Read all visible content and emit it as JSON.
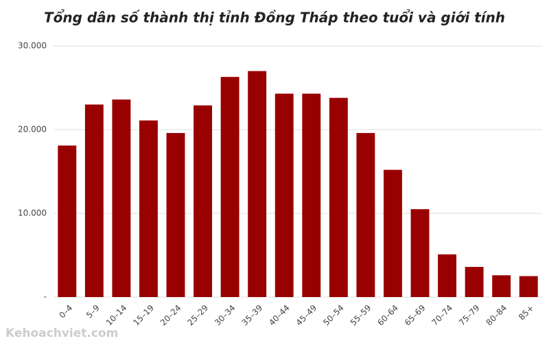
{
  "chart_data": {
    "type": "bar",
    "title": "Tổng dân số thành thị tỉnh Đồng Tháp theo tuổi và giới tính",
    "categories": [
      "0–4",
      "5–9",
      "10–14",
      "15–19",
      "20–24",
      "25–29",
      "30–34",
      "35–39",
      "40–44",
      "45–49",
      "50–54",
      "55–59",
      "60–64",
      "65–69",
      "70–74",
      "75–79",
      "80–84",
      "85+"
    ],
    "values": [
      18100,
      23000,
      23600,
      21100,
      19600,
      22900,
      26300,
      27000,
      24300,
      24300,
      23800,
      19600,
      15200,
      10500,
      5100,
      3600,
      2600,
      2500
    ],
    "color": "#990000",
    "ylim": [
      0,
      30000
    ],
    "yticks": [
      {
        "value": 0,
        "label": "-"
      },
      {
        "value": 10000,
        "label": "10.000"
      },
      {
        "value": 20000,
        "label": "20.000"
      },
      {
        "value": 30000,
        "label": "30.000"
      }
    ],
    "grid": true,
    "watermark": "Kehoachviet.com"
  }
}
